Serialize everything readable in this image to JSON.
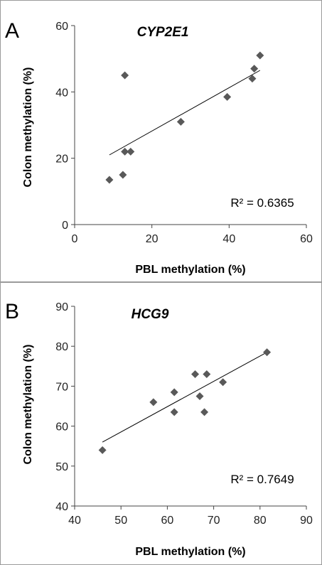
{
  "chart_data": [
    {
      "type": "scatter",
      "panel_label": "A",
      "title": "CYP2E1",
      "xlabel": "PBL methylation (%)",
      "ylabel": "Colon methylation (%)",
      "xlim": [
        0,
        60
      ],
      "ylim": [
        0,
        60
      ],
      "xticks": [
        0,
        20,
        40,
        60
      ],
      "yticks": [
        0,
        20,
        40,
        60
      ],
      "r_squared_label": "R² = 0.6365",
      "points": [
        {
          "x": 9,
          "y": 13.5
        },
        {
          "x": 12.5,
          "y": 15
        },
        {
          "x": 13,
          "y": 22
        },
        {
          "x": 14.5,
          "y": 22
        },
        {
          "x": 13,
          "y": 45
        },
        {
          "x": 27.5,
          "y": 31
        },
        {
          "x": 39.5,
          "y": 38.5
        },
        {
          "x": 46,
          "y": 44
        },
        {
          "x": 46.5,
          "y": 47
        },
        {
          "x": 48,
          "y": 51
        }
      ],
      "trendline": {
        "x": [
          9,
          48
        ],
        "y": [
          21,
          46.5
        ]
      },
      "grid": false,
      "legend": "none"
    },
    {
      "type": "scatter",
      "panel_label": "B",
      "title": "HCG9",
      "xlabel": "PBL methylation (%)",
      "ylabel": "Colon methylation (%)",
      "xlim": [
        40,
        90
      ],
      "ylim": [
        40,
        90
      ],
      "xticks": [
        40,
        50,
        60,
        70,
        80,
        90
      ],
      "yticks": [
        40,
        50,
        60,
        70,
        80,
        90
      ],
      "r_squared_label": "R² = 0.7649",
      "points": [
        {
          "x": 46,
          "y": 54
        },
        {
          "x": 57,
          "y": 66
        },
        {
          "x": 61.5,
          "y": 68.5
        },
        {
          "x": 61.5,
          "y": 63.5
        },
        {
          "x": 66,
          "y": 73
        },
        {
          "x": 67,
          "y": 67.5
        },
        {
          "x": 68,
          "y": 63.5
        },
        {
          "x": 68.5,
          "y": 73
        },
        {
          "x": 72,
          "y": 71
        },
        {
          "x": 81.5,
          "y": 78.5
        }
      ],
      "trendline": {
        "x": [
          46,
          81.5
        ],
        "y": [
          56,
          78.5
        ]
      },
      "grid": false,
      "legend": "none"
    }
  ]
}
